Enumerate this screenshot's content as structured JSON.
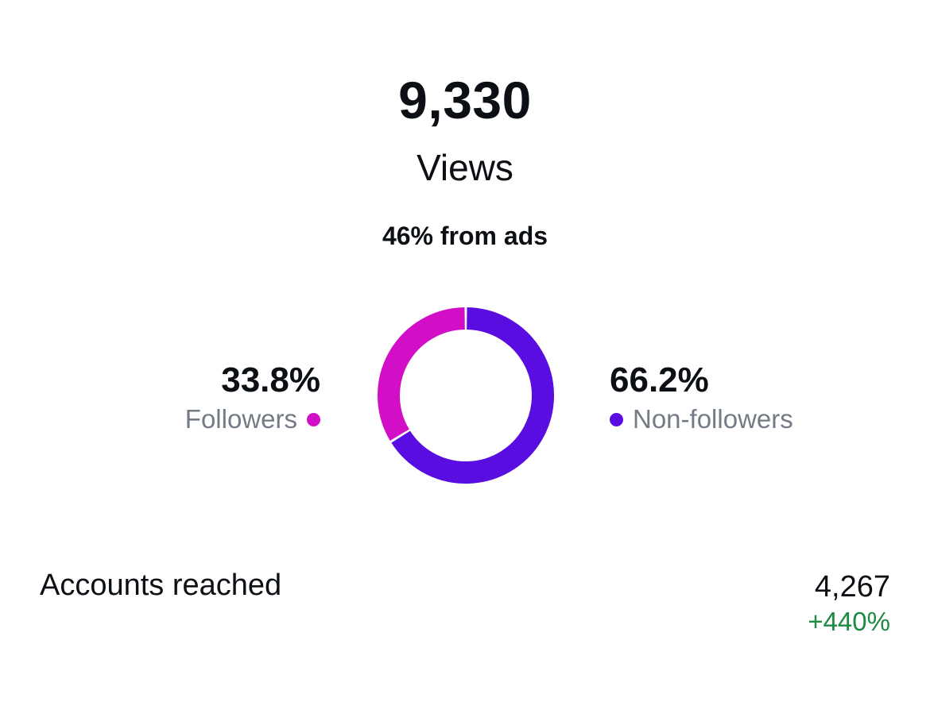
{
  "summary": {
    "views_count": "9,330",
    "views_label": "Views",
    "ads_note": "46% from ads"
  },
  "audience": {
    "followers": {
      "percent_label": "33.8%",
      "name": "Followers",
      "fraction": 0.338,
      "color": "#d20fc6"
    },
    "non_followers": {
      "percent_label": "66.2%",
      "name": "Non-followers",
      "fraction": 0.662,
      "color": "#5a0de0"
    }
  },
  "reach": {
    "label": "Accounts reached",
    "value": "4,267",
    "change": "+440%",
    "change_color": "#1e8a43"
  }
}
